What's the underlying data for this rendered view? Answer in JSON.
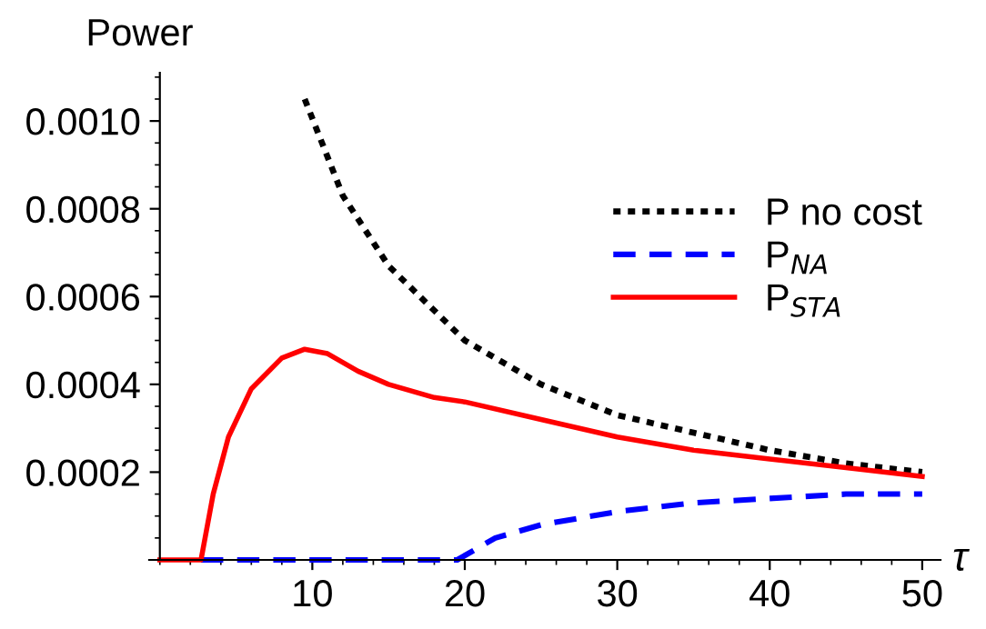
{
  "chart_data": {
    "type": "line",
    "ylabel": "Power",
    "xlabel": "τ",
    "xlim": [
      -0.7,
      51.2
    ],
    "ylim": [
      0,
      0.00111
    ],
    "xticks": [
      10,
      20,
      30,
      40,
      50
    ],
    "yticks": [
      {
        "value": 0.0002,
        "label": "0.0002"
      },
      {
        "value": 0.0004,
        "label": "0.0004"
      },
      {
        "value": 0.0006,
        "label": "0.0006"
      },
      {
        "value": 0.0008,
        "label": "0.0008"
      },
      {
        "value": 0.001,
        "label": "0.0010"
      }
    ],
    "legend": "right",
    "grid": false,
    "series": [
      {
        "name": "P no cost",
        "color": "#000000",
        "line_style": "dotted",
        "x": [
          9.5,
          12,
          15,
          20,
          25,
          30,
          35,
          40,
          45,
          50
        ],
        "values": [
          0.00105,
          0.00083,
          0.00067,
          0.0005,
          0.0004,
          0.00033,
          0.00029,
          0.00025,
          0.00022,
          0.0002
        ]
      },
      {
        "name": "P$_{NA}$",
        "color": "#0000ff",
        "line_style": "dashed",
        "x": [
          2.7,
          10,
          19.5,
          22,
          25,
          30,
          35,
          40,
          45,
          50
        ],
        "values": [
          0,
          0,
          0,
          5e-05,
          8e-05,
          0.00011,
          0.00013,
          0.00014,
          0.00015,
          0.00015
        ]
      },
      {
        "name": "P$_{STA}$",
        "color": "#ff0000",
        "line_style": "solid",
        "x": [
          0,
          2.7,
          3.5,
          4.5,
          6,
          8,
          9.5,
          11,
          13,
          15,
          18,
          20,
          25,
          30,
          35,
          40,
          45,
          50
        ],
        "values": [
          0,
          0,
          0.00015,
          0.00028,
          0.00039,
          0.00046,
          0.00048,
          0.00047,
          0.00043,
          0.0004,
          0.00037,
          0.00036,
          0.00032,
          0.00028,
          0.00025,
          0.00023,
          0.00021,
          0.00019
        ]
      }
    ]
  }
}
